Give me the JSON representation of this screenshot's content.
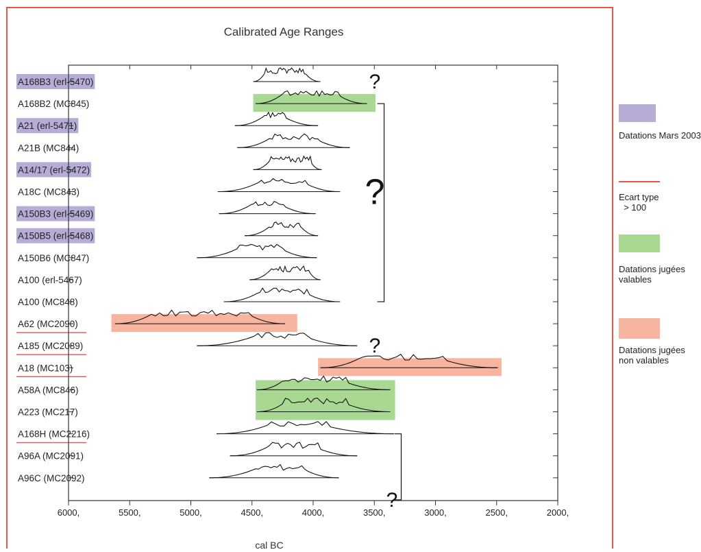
{
  "colors": {
    "frame": "#e8534a",
    "mars2003": "#b6acd6",
    "ecart": "#e8534a",
    "valable": "#a8d892",
    "nonvalable": "#f7b5a0",
    "axis": "#333333",
    "curve": "#111111"
  },
  "legend": [
    {
      "key": "mars2003",
      "text": [
        "Datations Mars 2003"
      ]
    },
    {
      "key": "ecart",
      "text": [
        "Ecart type",
        "  > 100"
      ]
    },
    {
      "key": "valable",
      "text": [
        "Datations jugées",
        "valables"
      ]
    },
    {
      "key": "nonvalable",
      "text": [
        "Datations jugées",
        "non valables"
      ]
    }
  ],
  "chart_data": {
    "type": "range",
    "title": "Calibrated Age Ranges",
    "xlabel": "cal BC",
    "ylabel": "",
    "xlim": [
      6000,
      2000
    ],
    "x_reversed": true,
    "xticks": [
      "6000,",
      "5500,",
      "5000,",
      "4500,",
      "4000,",
      "3500,",
      "3000,",
      "2500,",
      "2000,"
    ],
    "annotations": [
      {
        "text": "?",
        "x": 3440,
        "row": 0,
        "size": "medium"
      },
      {
        "text": "?",
        "x": 3440,
        "row": 5,
        "size": "large"
      },
      {
        "text": "?",
        "x": 3440,
        "row": 12,
        "size": "medium"
      },
      {
        "text": "?",
        "x": 3300,
        "row": 19,
        "size": "medium"
      }
    ],
    "brackets": [
      {
        "from_row": 1,
        "to_row": 10,
        "x": 3420
      },
      {
        "from_row": 16,
        "to_row": 19,
        "x": 3280
      }
    ],
    "highlights": [
      {
        "rows": [
          1,
          1
        ],
        "from": 4490,
        "to": 3490,
        "color": "valable"
      },
      {
        "rows": [
          11,
          11
        ],
        "from": 5650,
        "to": 4130,
        "color": "nonvalable"
      },
      {
        "rows": [
          13,
          13
        ],
        "from": 3960,
        "to": 2460,
        "color": "nonvalable"
      },
      {
        "rows": [
          14,
          15
        ],
        "from": 4470,
        "to": 3330,
        "color": "valable"
      }
    ],
    "samples": [
      {
        "label": "A168B3 (erl-5470)",
        "tag": "mars2003",
        "range": [
          4490,
          3940
        ],
        "peak": [
          4390,
          4060
        ]
      },
      {
        "label": "A168B2 (MC845)",
        "tag": "",
        "range": [
          4470,
          3560
        ],
        "peak": [
          4250,
          3780
        ]
      },
      {
        "label": "A21 (erl-5471)",
        "tag": "mars2003",
        "range": [
          4640,
          3960
        ],
        "peak": [
          4400,
          4220
        ]
      },
      {
        "label": "A21B (MC844)",
        "tag": "",
        "range": [
          4620,
          3700
        ],
        "peak": [
          4350,
          3960
        ]
      },
      {
        "label": "A14/17 (erl-5472)",
        "tag": "mars2003",
        "range": [
          4490,
          3930
        ],
        "peak": [
          4350,
          4020
        ]
      },
      {
        "label": "A18C (MC843)",
        "tag": "",
        "range": [
          4780,
          3780
        ],
        "peak": [
          4440,
          4050
        ]
      },
      {
        "label": "A150B3 (erl-5469)",
        "tag": "mars2003",
        "range": [
          4770,
          3980
        ],
        "peak": [
          4500,
          4240
        ]
      },
      {
        "label": "A150B5 (erl-5468)",
        "tag": "mars2003",
        "range": [
          4560,
          3960
        ],
        "peak": [
          4350,
          4090
        ]
      },
      {
        "label": "A150B6 (MC847)",
        "tag": "",
        "range": [
          4950,
          3970
        ],
        "peak": [
          4610,
          4240
        ]
      },
      {
        "label": "A100 (erl-5467)",
        "tag": "",
        "range": [
          4520,
          3940
        ],
        "peak": [
          4350,
          4030
        ]
      },
      {
        "label": "A100 (MC848)",
        "tag": "",
        "range": [
          4730,
          3780
        ],
        "peak": [
          4440,
          4040
        ]
      },
      {
        "label": "A62 (MC2090)",
        "tag": "ecart",
        "range": [
          5620,
          4230
        ],
        "peak": [
          5320,
          4500
        ]
      },
      {
        "label": "A185 (MC2089)",
        "tag": "ecart",
        "range": [
          4950,
          3640
        ],
        "peak": [
          4480,
          4030
        ]
      },
      {
        "label": "A18 (MC103)",
        "tag": "ecart",
        "range": [
          3940,
          2490
        ],
        "peak": [
          3620,
          2920
        ]
      },
      {
        "label": "A58A (MC846)",
        "tag": "",
        "range": [
          4460,
          3370
        ],
        "peak": [
          4240,
          3730
        ]
      },
      {
        "label": "A223 (MC217)",
        "tag": "",
        "range": [
          4460,
          3370
        ],
        "peak": [
          4230,
          3720
        ]
      },
      {
        "label": "A168H (MC2216)",
        "tag": "ecart",
        "range": [
          4790,
          3340
        ],
        "peak": [
          4350,
          3880
        ]
      },
      {
        "label": "A96A (MC2091)",
        "tag": "",
        "range": [
          4680,
          3640
        ],
        "peak": [
          4360,
          3960
        ]
      },
      {
        "label": "A96C (MC2092)",
        "tag": "",
        "range": [
          4850,
          3790
        ],
        "peak": [
          4460,
          4060
        ]
      }
    ]
  }
}
